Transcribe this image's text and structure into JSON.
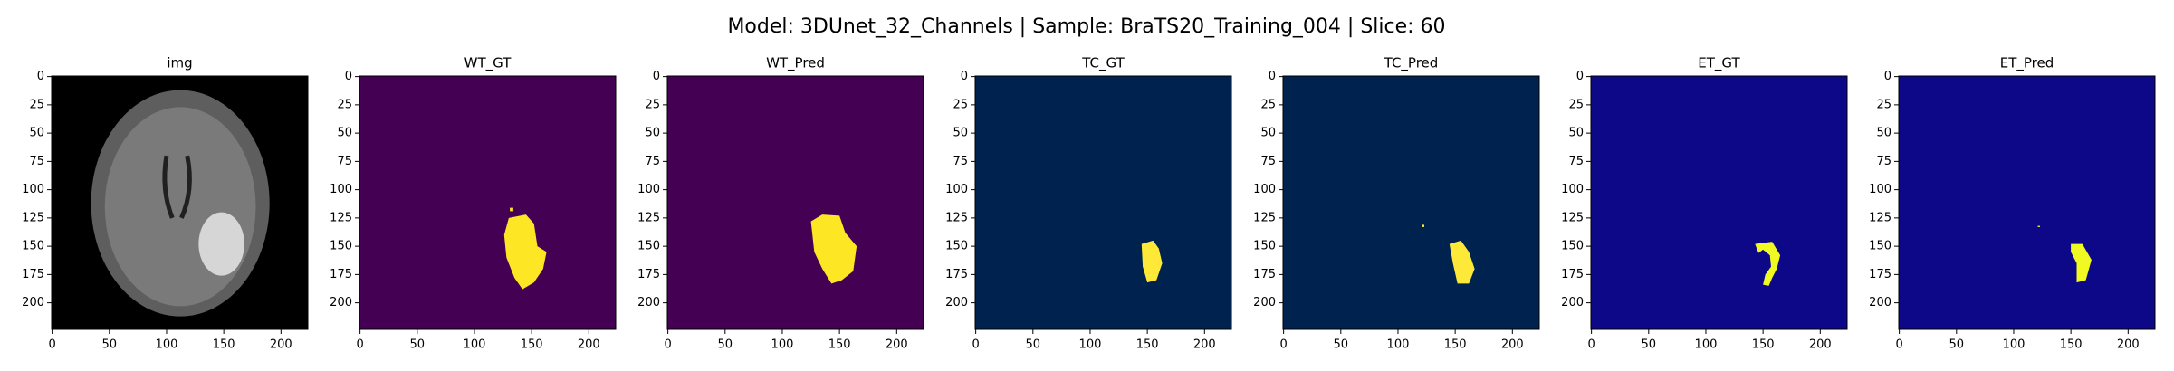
{
  "title": "Model: 3DUnet_32_Channels | Sample: BraTS20_Training_004 | Slice: 60",
  "chart_data": [
    {
      "type": "image",
      "title": "img",
      "background": "#000000",
      "color": "#e6e6e6",
      "xlim": [
        -0.5,
        223.5
      ],
      "ylim": [
        223.5,
        -0.5
      ],
      "xticks": [
        0,
        50,
        100,
        150,
        200
      ],
      "yticks": [
        0,
        25,
        50,
        75,
        100,
        125,
        150,
        175,
        200
      ]
    },
    {
      "type": "image",
      "title": "WT_GT",
      "background": "#440154",
      "color": "#fde725",
      "xlim": [
        -0.5,
        223.5
      ],
      "ylim": [
        223.5,
        -0.5
      ],
      "xticks": [
        0,
        50,
        100,
        150,
        200
      ],
      "yticks": [
        0,
        25,
        50,
        75,
        100,
        125,
        150,
        175,
        200
      ]
    },
    {
      "type": "image",
      "title": "WT_Pred",
      "background": "#440154",
      "color": "#fde725",
      "xlim": [
        -0.5,
        223.5
      ],
      "ylim": [
        223.5,
        -0.5
      ],
      "xticks": [
        0,
        50,
        100,
        150,
        200
      ],
      "yticks": [
        0,
        25,
        50,
        75,
        100,
        125,
        150,
        175,
        200
      ]
    },
    {
      "type": "image",
      "title": "TC_GT",
      "background": "#00224e",
      "color": "#fee838",
      "xlim": [
        -0.5,
        223.5
      ],
      "ylim": [
        223.5,
        -0.5
      ],
      "xticks": [
        0,
        50,
        100,
        150,
        200
      ],
      "yticks": [
        0,
        25,
        50,
        75,
        100,
        125,
        150,
        175,
        200
      ]
    },
    {
      "type": "image",
      "title": "TC_Pred",
      "background": "#00224e",
      "color": "#fee838",
      "xlim": [
        -0.5,
        223.5
      ],
      "ylim": [
        223.5,
        -0.5
      ],
      "xticks": [
        0,
        50,
        100,
        150,
        200
      ],
      "yticks": [
        0,
        25,
        50,
        75,
        100,
        125,
        150,
        175,
        200
      ]
    },
    {
      "type": "image",
      "title": "ET_GT",
      "background": "#0d0887",
      "color": "#f0f921",
      "xlim": [
        -0.5,
        223.5
      ],
      "ylim": [
        223.5,
        -0.5
      ],
      "xticks": [
        0,
        50,
        100,
        150,
        200
      ],
      "yticks": [
        0,
        25,
        50,
        75,
        100,
        125,
        150,
        175,
        200
      ]
    },
    {
      "type": "image",
      "title": "ET_Pred",
      "background": "#0d0887",
      "color": "#f0f921",
      "xlim": [
        -0.5,
        223.5
      ],
      "ylim": [
        223.5,
        -0.5
      ],
      "xticks": [
        0,
        50,
        100,
        150,
        200
      ],
      "yticks": [
        0,
        25,
        50,
        75,
        100,
        125,
        150,
        175,
        200
      ]
    }
  ]
}
